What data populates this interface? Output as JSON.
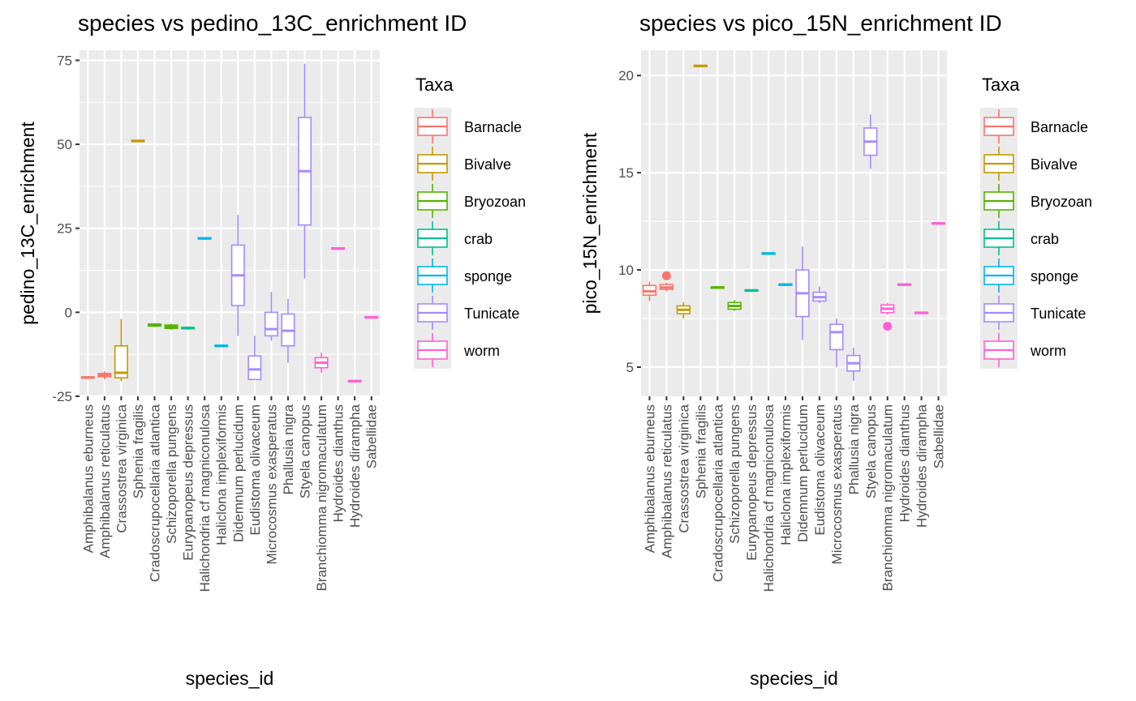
{
  "colors": {
    "panel_bg": "#EBEBEB",
    "grid": "#FFFFFF",
    "tick_text": "#4D4D4D",
    "Barnacle": "#F8766D",
    "Bivalve": "#C49A00",
    "Bryozoan": "#53B400",
    "crab": "#00C094",
    "sponge": "#00B6EB",
    "Tunicate": "#A58AFF",
    "worm": "#FB61D7"
  },
  "chart_data": [
    {
      "type": "boxplot",
      "title": "species vs pedino_13C_enrichment ID",
      "xlabel": "species_id",
      "ylabel": "pedino_13C_enrichment",
      "ylim": [
        -25,
        78
      ],
      "yticks": [
        -25,
        0,
        25,
        50,
        75
      ],
      "grid": true,
      "legend": {
        "title": "Taxa",
        "placement": "right",
        "entries": [
          "Barnacle",
          "Bivalve",
          "Bryozoan",
          "crab",
          "sponge",
          "Tunicate",
          "worm"
        ]
      },
      "boxes": [
        {
          "species": "Amphibalanus eburneus",
          "taxa": "Barnacle",
          "min": -19.8,
          "q1": -19.6,
          "median": -19.4,
          "q3": -19.2,
          "max": -19.0,
          "outliers": []
        },
        {
          "species": "Amphibalanus reticulatus",
          "taxa": "Barnacle",
          "min": -20.0,
          "q1": -19.2,
          "median": -18.7,
          "q3": -18.2,
          "max": -17.5,
          "outliers": []
        },
        {
          "species": "Crassostrea virginica",
          "taxa": "Bivalve",
          "min": -20.5,
          "q1": -19.5,
          "median": -18.0,
          "q3": -10.0,
          "max": -2.0,
          "outliers": []
        },
        {
          "species": "Sphenia fragilis",
          "taxa": "Bivalve",
          "min": 50.6,
          "q1": 50.8,
          "median": 51.0,
          "q3": 51.2,
          "max": 51.4,
          "outliers": []
        },
        {
          "species": "Cradoscrupocellaria atlantica",
          "taxa": "Bryozoan",
          "min": -4.4,
          "q1": -4.1,
          "median": -3.8,
          "q3": -3.5,
          "max": -3.2,
          "outliers": []
        },
        {
          "species": "Schizoporella pungens",
          "taxa": "Bryozoan",
          "min": -5.2,
          "q1": -4.8,
          "median": -4.3,
          "q3": -3.8,
          "max": -3.4,
          "outliers": []
        },
        {
          "species": "Eurypanopeus depressus",
          "taxa": "crab",
          "min": -5.2,
          "q1": -4.9,
          "median": -4.7,
          "q3": -4.5,
          "max": -4.2,
          "outliers": []
        },
        {
          "species": "Halichondria cf magniconulosa",
          "taxa": "sponge",
          "min": 21.6,
          "q1": 21.8,
          "median": 22.0,
          "q3": 22.2,
          "max": 22.4,
          "outliers": []
        },
        {
          "species": "Haliclona implexiformis",
          "taxa": "sponge",
          "min": -10.4,
          "q1": -10.2,
          "median": -10.0,
          "q3": -9.8,
          "max": -9.6,
          "outliers": []
        },
        {
          "species": "Didemnum perlucidum",
          "taxa": "Tunicate",
          "min": -7.0,
          "q1": 2.0,
          "median": 11.0,
          "q3": 20.0,
          "max": 29.0,
          "outliers": []
        },
        {
          "species": "Eudistoma olivaceum",
          "taxa": "Tunicate",
          "min": -20.0,
          "q1": -20.0,
          "median": -17.0,
          "q3": -13.0,
          "max": -7.0,
          "outliers": []
        },
        {
          "species": "Microcosmus exasperatus",
          "taxa": "Tunicate",
          "min": -8.5,
          "q1": -7.0,
          "median": -5.0,
          "q3": 0.0,
          "max": 6.0,
          "outliers": []
        },
        {
          "species": "Phallusia nigra",
          "taxa": "Tunicate",
          "min": -15.0,
          "q1": -10.0,
          "median": -5.5,
          "q3": -0.5,
          "max": 4.0,
          "outliers": []
        },
        {
          "species": "Styela canopus",
          "taxa": "Tunicate",
          "min": 10.0,
          "q1": 26.0,
          "median": 42.0,
          "q3": 58.0,
          "max": 74.0,
          "outliers": []
        },
        {
          "species": "Branchiomma nigromaculatum",
          "taxa": "worm",
          "min": -18.0,
          "q1": -16.5,
          "median": -15.0,
          "q3": -13.5,
          "max": -12.0,
          "outliers": []
        },
        {
          "species": "Hydroides dianthus",
          "taxa": "worm",
          "min": 18.6,
          "q1": 18.8,
          "median": 19.0,
          "q3": 19.2,
          "max": 19.4,
          "outliers": []
        },
        {
          "species": "Hydroides dirampha",
          "taxa": "worm",
          "min": -20.9,
          "q1": -20.7,
          "median": -20.5,
          "q3": -20.3,
          "max": -20.1,
          "outliers": []
        },
        {
          "species": "Sabellidae",
          "taxa": "worm",
          "min": -1.9,
          "q1": -1.7,
          "median": -1.5,
          "q3": -1.3,
          "max": -1.1,
          "outliers": []
        }
      ]
    },
    {
      "type": "boxplot",
      "title": "species vs pico_15N_enrichment ID",
      "xlabel": "species_id",
      "ylabel": "pico_15N_enrichment",
      "ylim": [
        3.5,
        21.3
      ],
      "yticks": [
        5,
        10,
        15,
        20
      ],
      "grid": true,
      "legend": {
        "title": "Taxa",
        "placement": "right",
        "entries": [
          "Barnacle",
          "Bivalve",
          "Bryozoan",
          "crab",
          "sponge",
          "Tunicate",
          "worm"
        ]
      },
      "boxes": [
        {
          "species": "Amphibalanus eburneus",
          "taxa": "Barnacle",
          "min": 8.4,
          "q1": 8.7,
          "median": 8.9,
          "q3": 9.2,
          "max": 9.4,
          "outliers": []
        },
        {
          "species": "Amphibalanus reticulatus",
          "taxa": "Barnacle",
          "min": 8.9,
          "q1": 9.0,
          "median": 9.1,
          "q3": 9.25,
          "max": 9.35,
          "outliers": [
            9.7
          ]
        },
        {
          "species": "Crassostrea virginica",
          "taxa": "Bivalve",
          "min": 7.5,
          "q1": 7.75,
          "median": 7.95,
          "q3": 8.15,
          "max": 8.35,
          "outliers": []
        },
        {
          "species": "Sphenia fragilis",
          "taxa": "Bivalve",
          "min": 20.45,
          "q1": 20.48,
          "median": 20.5,
          "q3": 20.52,
          "max": 20.55,
          "outliers": []
        },
        {
          "species": "Cradoscrupocellaria atlantica",
          "taxa": "Bryozoan",
          "min": 9.05,
          "q1": 9.08,
          "median": 9.1,
          "q3": 9.12,
          "max": 9.15,
          "outliers": []
        },
        {
          "species": "Schizoporella pungens",
          "taxa": "Bryozoan",
          "min": 7.9,
          "q1": 7.98,
          "median": 8.15,
          "q3": 8.32,
          "max": 8.45,
          "outliers": []
        },
        {
          "species": "Eurypanopeus depressus",
          "taxa": "crab",
          "min": 8.9,
          "q1": 8.93,
          "median": 8.95,
          "q3": 8.97,
          "max": 9.0,
          "outliers": []
        },
        {
          "species": "Halichondria cf magniconulosa",
          "taxa": "sponge",
          "min": 10.8,
          "q1": 10.83,
          "median": 10.85,
          "q3": 10.87,
          "max": 10.9,
          "outliers": []
        },
        {
          "species": "Haliclona implexiformis",
          "taxa": "sponge",
          "min": 9.2,
          "q1": 9.23,
          "median": 9.25,
          "q3": 9.27,
          "max": 9.3,
          "outliers": []
        },
        {
          "species": "Didemnum perlucidum",
          "taxa": "Tunicate",
          "min": 6.4,
          "q1": 7.6,
          "median": 8.8,
          "q3": 10.0,
          "max": 11.2,
          "outliers": []
        },
        {
          "species": "Eudistoma olivaceum",
          "taxa": "Tunicate",
          "min": 8.3,
          "q1": 8.4,
          "median": 8.6,
          "q3": 8.85,
          "max": 9.15,
          "outliers": []
        },
        {
          "species": "Microcosmus exasperatus",
          "taxa": "Tunicate",
          "min": 5.0,
          "q1": 5.9,
          "median": 6.8,
          "q3": 7.2,
          "max": 7.5,
          "outliers": []
        },
        {
          "species": "Phallusia nigra",
          "taxa": "Tunicate",
          "min": 4.3,
          "q1": 4.8,
          "median": 5.2,
          "q3": 5.6,
          "max": 6.0,
          "outliers": []
        },
        {
          "species": "Styela canopus",
          "taxa": "Tunicate",
          "min": 15.2,
          "q1": 15.9,
          "median": 16.6,
          "q3": 17.3,
          "max": 18.0,
          "outliers": []
        },
        {
          "species": "Branchiomma nigromaculatum",
          "taxa": "worm",
          "min": 7.7,
          "q1": 7.8,
          "median": 8.0,
          "q3": 8.2,
          "max": 8.3,
          "outliers": [
            7.1
          ]
        },
        {
          "species": "Hydroides dianthus",
          "taxa": "worm",
          "min": 9.2,
          "q1": 9.23,
          "median": 9.25,
          "q3": 9.27,
          "max": 9.3,
          "outliers": []
        },
        {
          "species": "Hydroides dirampha",
          "taxa": "worm",
          "min": 7.75,
          "q1": 7.78,
          "median": 7.8,
          "q3": 7.82,
          "max": 7.85,
          "outliers": []
        },
        {
          "species": "Sabellidae",
          "taxa": "worm",
          "min": 12.35,
          "q1": 12.38,
          "median": 12.4,
          "q3": 12.42,
          "max": 12.45,
          "outliers": []
        }
      ]
    }
  ]
}
